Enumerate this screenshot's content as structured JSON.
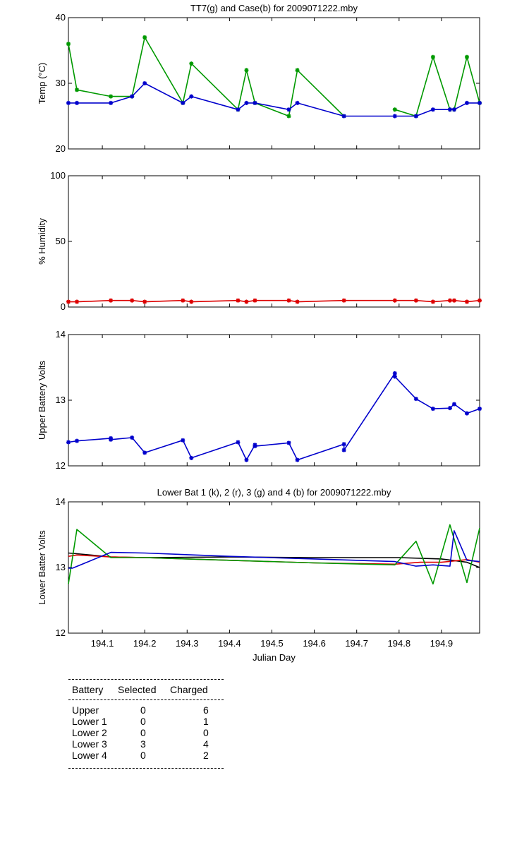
{
  "chart_data": [
    {
      "type": "line",
      "title": "TT7(g) and Case(b) for 2009071222.mby",
      "xlabel": "",
      "ylabel": "Temp  (°C)",
      "xlim": [
        194.02,
        194.99
      ],
      "ylim": [
        20,
        40
      ],
      "yticks": [
        "20",
        "30",
        "40"
      ],
      "grid": false,
      "series": [
        {
          "name": "TT7",
          "color": "#009900",
          "x": [
            194.02,
            194.04,
            194.12,
            194.17,
            194.2,
            194.29,
            194.31,
            194.42,
            194.44,
            194.46,
            194.54,
            194.56,
            194.67
          ],
          "y": [
            36,
            29,
            28,
            28,
            37,
            27,
            33,
            26,
            32,
            27,
            25,
            32,
            25
          ]
        },
        {
          "name": "TT7",
          "color": "#009900",
          "x": [
            194.79,
            194.84,
            194.88,
            194.92,
            194.93,
            194.96,
            194.99
          ],
          "y": [
            26,
            25,
            34,
            26,
            26,
            34,
            27
          ]
        },
        {
          "name": "Case",
          "color": "#0000cc",
          "x": [
            194.02,
            194.04,
            194.12,
            194.17,
            194.2,
            194.29,
            194.31,
            194.42,
            194.44,
            194.46,
            194.54,
            194.56,
            194.67,
            194.79,
            194.84,
            194.88,
            194.92,
            194.93,
            194.96,
            194.99
          ],
          "y": [
            27,
            27,
            27,
            28,
            30,
            27,
            28,
            26,
            27,
            27,
            26,
            27,
            25,
            25,
            25,
            26,
            26,
            26,
            27,
            27
          ]
        }
      ]
    },
    {
      "type": "line",
      "title": "",
      "xlabel": "",
      "ylabel": "% Humidity",
      "xlim": [
        194.02,
        194.99
      ],
      "ylim": [
        0,
        100
      ],
      "yticks": [
        "0",
        "50",
        "100"
      ],
      "grid": false,
      "series": [
        {
          "name": "Humidity",
          "color": "#dd0000",
          "x": [
            194.02,
            194.04,
            194.12,
            194.17,
            194.2,
            194.29,
            194.31,
            194.42,
            194.44,
            194.46,
            194.54,
            194.56,
            194.67,
            194.79,
            194.84,
            194.88,
            194.92,
            194.93,
            194.96,
            194.99
          ],
          "y": [
            4,
            4,
            5,
            5,
            4,
            5,
            4,
            5,
            4,
            5,
            5,
            4,
            5,
            5,
            5,
            4,
            5,
            5,
            4,
            5
          ]
        }
      ]
    },
    {
      "type": "line",
      "title": "",
      "xlabel": "",
      "ylabel": "Upper Battery Volts",
      "xlim": [
        194.02,
        194.99
      ],
      "ylim": [
        12,
        14
      ],
      "yticks": [
        "12",
        "13",
        "14"
      ],
      "grid": false,
      "series": [
        {
          "name": "Upper",
          "color": "#0000cc",
          "x": [
            194.02,
            194.04,
            194.12,
            194.12,
            194.17,
            194.2,
            194.29,
            194.31,
            194.42,
            194.44,
            194.46,
            194.46,
            194.54,
            194.56,
            194.67,
            194.67,
            194.79,
            194.79,
            194.84,
            194.88,
            194.92,
            194.93,
            194.96,
            194.99
          ],
          "y": [
            12.36,
            12.38,
            12.42,
            12.4,
            12.43,
            12.2,
            12.39,
            12.12,
            12.36,
            12.09,
            12.32,
            12.3,
            12.35,
            12.09,
            12.33,
            12.24,
            13.41,
            13.36,
            13.02,
            12.87,
            12.88,
            12.94,
            12.8,
            12.87
          ]
        }
      ]
    },
    {
      "type": "line",
      "title": "Lower Bat 1 (k), 2 (r), 3 (g) and 4 (b) for 2009071222.mby",
      "xlabel": "Julian Day",
      "ylabel": "Lower Batter Volts",
      "xlim": [
        194.02,
        194.99
      ],
      "ylim": [
        12,
        14
      ],
      "yticks": [
        "12",
        "13",
        "14"
      ],
      "xticks": [
        194.1,
        194.2,
        194.3,
        194.4,
        194.5,
        194.6,
        194.7,
        194.8,
        194.9
      ],
      "xticklabels": [
        "194.1",
        "194.2",
        "194.3",
        "194.4",
        "194.5",
        "194.6",
        "194.7",
        "194.8",
        "194.9"
      ],
      "grid": false,
      "series": [
        {
          "name": "Lower Bat 1",
          "color": "#000000",
          "x": [
            194.02,
            194.04,
            194.12,
            194.2,
            194.4,
            194.6,
            194.8,
            194.9,
            194.96,
            194.99
          ],
          "y": [
            13.22,
            13.21,
            13.16,
            13.15,
            13.16,
            13.15,
            13.15,
            13.13,
            13.08,
            13.0
          ]
        },
        {
          "name": "Lower Bat 2",
          "color": "#dd0000",
          "x": [
            194.02,
            194.04,
            194.12,
            194.2,
            194.4,
            194.6,
            194.79,
            194.85,
            194.9,
            194.96,
            194.99
          ],
          "y": [
            13.17,
            13.19,
            13.16,
            13.15,
            13.11,
            13.07,
            13.05,
            13.08,
            13.08,
            13.12,
            13.08
          ]
        },
        {
          "name": "Lower Bat 3",
          "color": "#009900",
          "x": [
            194.02,
            194.04,
            194.12,
            194.2,
            194.4,
            194.6,
            194.79,
            194.84,
            194.88,
            194.92,
            194.96,
            194.99
          ],
          "y": [
            12.75,
            13.58,
            13.15,
            13.15,
            13.11,
            13.07,
            13.04,
            13.4,
            12.75,
            13.65,
            12.77,
            13.6
          ]
        },
        {
          "name": "Lower Bat 4",
          "color": "#0000cc",
          "x": [
            194.02,
            194.03,
            194.12,
            194.2,
            194.4,
            194.6,
            194.79,
            194.84,
            194.88,
            194.92,
            194.93,
            194.96,
            194.99
          ],
          "y": [
            12.99,
            12.99,
            13.23,
            13.22,
            13.17,
            13.13,
            13.09,
            13.02,
            13.04,
            13.02,
            13.56,
            13.11,
            13.09
          ]
        }
      ]
    }
  ],
  "battery_table": {
    "headers": {
      "battery": "Battery",
      "selected": "Selected",
      "charged": "Charged"
    },
    "rows": [
      {
        "battery": "Upper",
        "selected": "0",
        "charged": "6"
      },
      {
        "battery": "Lower 1",
        "selected": "0",
        "charged": "1"
      },
      {
        "battery": "Lower 2",
        "selected": "0",
        "charged": "0"
      },
      {
        "battery": "Lower 3",
        "selected": "3",
        "charged": "4"
      },
      {
        "battery": "Lower 4",
        "selected": "0",
        "charged": "2"
      }
    ]
  }
}
